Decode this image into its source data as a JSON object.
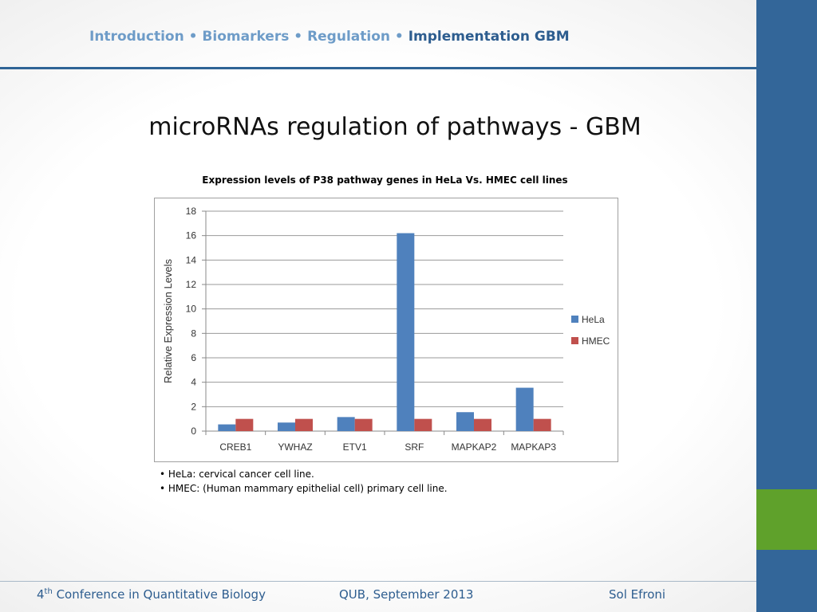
{
  "header": {
    "breadcrumb": [
      {
        "label": "Introduction",
        "active": false
      },
      {
        "label": "Biomarkers",
        "active": false
      },
      {
        "label": "Regulation",
        "active": false
      },
      {
        "label": "Implementation GBM",
        "active": true
      }
    ],
    "separator": "•"
  },
  "slide": {
    "title": "microRNAs regulation of pathways - GBM"
  },
  "chart_data": {
    "type": "bar",
    "title": "Expression levels of P38 pathway genes in HeLa Vs. HMEC cell lines",
    "xlabel": "",
    "ylabel": "Relative Expression Levels",
    "categories": [
      "CREB1",
      "YWHAZ",
      "ETV1",
      "SRF",
      "MAPKAP2",
      "MAPKAP3"
    ],
    "series": [
      {
        "name": "HeLa",
        "color": "#4f81bd",
        "values": [
          0.55,
          0.7,
          1.15,
          16.2,
          1.55,
          3.55
        ]
      },
      {
        "name": "HMEC",
        "color": "#c0504d",
        "values": [
          1,
          1,
          1,
          1,
          1,
          1
        ]
      }
    ],
    "ylim": [
      0,
      18
    ],
    "yticks": [
      0,
      2,
      4,
      6,
      8,
      10,
      12,
      14,
      16,
      18
    ],
    "grid": true,
    "legend_position": "right"
  },
  "notes": [
    "• HeLa: cervical cancer cell line.",
    "• HMEC: (Human mammary epithelial cell) primary cell line."
  ],
  "footer": {
    "conference_prefix": "4",
    "conference_sup": "th",
    "conference_rest": " Conference in Quantitative Biology",
    "venue": "QUB, September 2013",
    "author": "Sol Efroni"
  },
  "theme": {
    "primary": "#336699",
    "accent_green": "#5fa12b"
  }
}
